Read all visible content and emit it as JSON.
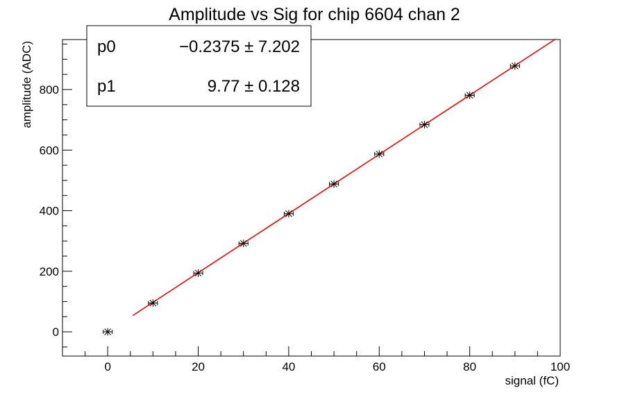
{
  "chart_data": {
    "type": "scatter",
    "title": "Amplitude vs Sig for chip 6604 chan 2",
    "xlabel": "signal (fC)",
    "ylabel": "amplitude (ADC)",
    "xlim": [
      -10,
      100
    ],
    "ylim": [
      -80,
      965
    ],
    "x_ticks": [
      0,
      20,
      40,
      60,
      80,
      100
    ],
    "y_ticks": [
      0,
      200,
      400,
      600,
      800
    ],
    "grid": false,
    "legend": "none",
    "series": [
      {
        "x": [
          0,
          10,
          20,
          30,
          40,
          50,
          60,
          70,
          80,
          90
        ],
        "y": [
          0,
          95,
          194,
          292,
          390,
          488,
          587,
          684,
          781,
          878
        ],
        "x_err": [
          1,
          1,
          1,
          1,
          1,
          1,
          1,
          1,
          1,
          1
        ],
        "y_err": [
          2,
          2,
          2,
          2,
          2,
          2,
          2,
          2,
          2,
          2
        ],
        "color": "#000000",
        "marker": "star"
      }
    ],
    "fit": {
      "function": "p0 + p1*x",
      "x_range": [
        5.5,
        99
      ],
      "p0": -0.2375,
      "p1": 9.77,
      "color": "#ff0000"
    },
    "stats_box": {
      "position": "top-left",
      "rows": [
        {
          "name": "p0",
          "value": "−0.2375 ± 7.202"
        },
        {
          "name": "p1",
          "value": "9.77 ± 0.128"
        }
      ]
    }
  }
}
